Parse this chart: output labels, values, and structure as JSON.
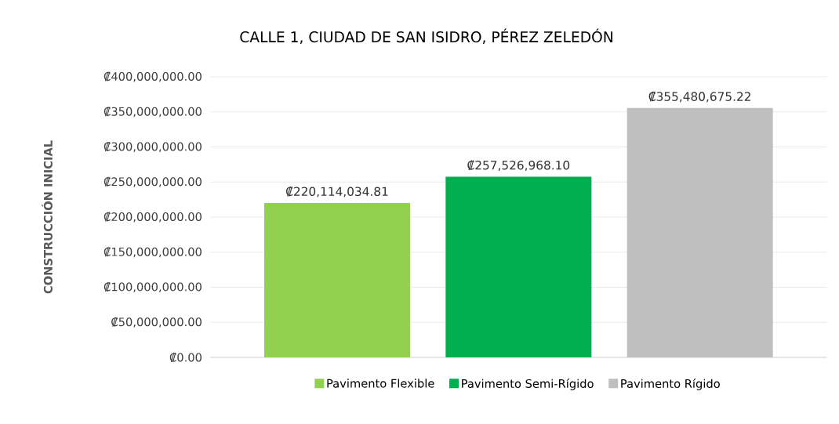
{
  "chart_data": {
    "type": "bar",
    "title": "CALLE 1, CIUDAD DE SAN ISIDRO, PÉREZ ZELEDÓN",
    "ylabel": "CONSTRUCCIÓN INICIAL",
    "categories": [
      null
    ],
    "series": [
      {
        "name": "Pavimento Flexible",
        "color": "#92d050",
        "values": [
          220114034.81
        ],
        "value_labels": [
          "₡220,114,034.81"
        ]
      },
      {
        "name": "Pavimento Semi-Rígido",
        "color": "#00b050",
        "values": [
          257526968.1
        ],
        "value_labels": [
          "₡257,526,968.10"
        ]
      },
      {
        "name": "Pavimento Rígido",
        "color": "#bfbfbf",
        "values": [
          355480675.22
        ],
        "value_labels": [
          "₡355,480,675.22"
        ]
      }
    ],
    "ylim": [
      0,
      400000000
    ],
    "yticks": [
      {
        "value": 0,
        "label": "₡0.00"
      },
      {
        "value": 50000000,
        "label": "₡50,000,000.00"
      },
      {
        "value": 100000000,
        "label": "₡100,000,000.00"
      },
      {
        "value": 150000000,
        "label": "₡150,000,000.00"
      },
      {
        "value": 200000000,
        "label": "₡200,000,000.00"
      },
      {
        "value": 250000000,
        "label": "₡250,000,000.00"
      },
      {
        "value": 300000000,
        "label": "₡300,000,000.00"
      },
      {
        "value": 350000000,
        "label": "₡350,000,000.00"
      },
      {
        "value": 400000000,
        "label": "₡400,000,000.00"
      }
    ],
    "grid": "y",
    "legend": "bottom"
  }
}
